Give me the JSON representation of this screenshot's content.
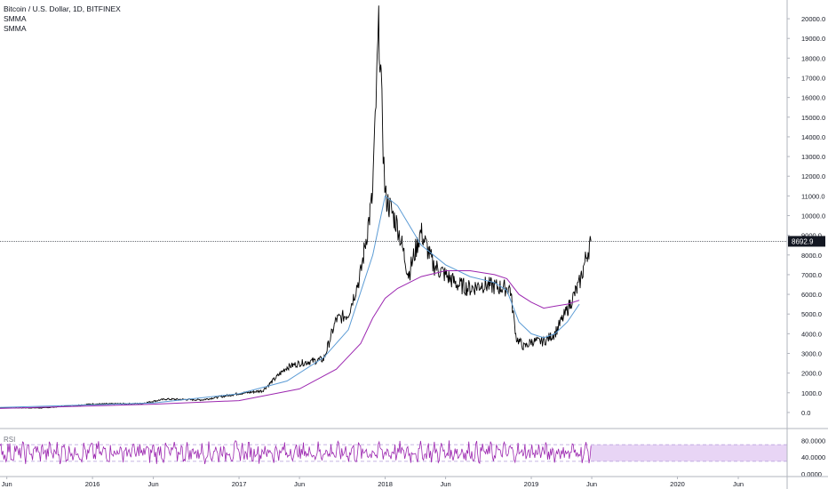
{
  "chart_data": [
    {
      "type": "line",
      "title": "Bitcoin / U.S. Dollar, 1D, BITFINEX",
      "series": [
        {
          "name": "",
          "color": "#000000",
          "x": [
            "2015-05",
            "2015-09",
            "2016-01",
            "2016-05",
            "2016-07",
            "2016-10",
            "2017-01",
            "2017-03",
            "2017-05",
            "2017-06",
            "2017-08",
            "2017-09",
            "2017-10",
            "2017-11",
            "2017-12-01",
            "2017-12-17",
            "2018-01",
            "2018-02",
            "2018-03",
            "2018-04",
            "2018-05",
            "2018-07",
            "2018-08",
            "2018-09",
            "2018-10",
            "2018-11-10",
            "2018-11-25",
            "2018-12-15",
            "2019-01",
            "2019-02",
            "2019-03",
            "2019-04",
            "2019-05",
            "2019-05-20",
            "2019-05-30"
          ],
          "y": [
            240,
            230,
            430,
            450,
            680,
            640,
            960,
            1100,
            2300,
            2500,
            2700,
            4700,
            5000,
            7000,
            11000,
            19800,
            11000,
            9500,
            7000,
            9200,
            7500,
            6500,
            6300,
            6500,
            6400,
            6300,
            3800,
            3300,
            3600,
            3600,
            4000,
            5200,
            6500,
            8000,
            8692.9
          ]
        },
        {
          "name": "SMMA",
          "color": "#5b9bd5",
          "x": [
            "2015-05",
            "2016-06",
            "2017-01",
            "2017-05",
            "2017-08",
            "2017-10",
            "2017-12",
            "2018-01",
            "2018-02",
            "2018-04",
            "2018-06",
            "2018-08",
            "2018-10",
            "2018-11",
            "2018-12",
            "2019-01",
            "2019-02",
            "2019-03",
            "2019-04",
            "2019-05"
          ],
          "y": [
            250,
            480,
            950,
            1600,
            2800,
            4200,
            8000,
            11000,
            10500,
            8500,
            7500,
            6900,
            6600,
            6200,
            4600,
            4000,
            3800,
            4000,
            4600,
            5500
          ]
        },
        {
          "name": "SMMA",
          "color": "#9c27b0",
          "x": [
            "2015-05",
            "2016-06",
            "2017-01",
            "2017-06",
            "2017-09",
            "2017-11",
            "2017-12",
            "2018-01",
            "2018-02",
            "2018-04",
            "2018-06",
            "2018-08",
            "2018-10",
            "2018-11",
            "2018-12",
            "2019-01",
            "2019-02",
            "2019-03",
            "2019-04",
            "2019-05"
          ],
          "y": [
            200,
            420,
            600,
            1200,
            2200,
            3500,
            4800,
            5800,
            6300,
            6900,
            7200,
            7200,
            7000,
            6800,
            6000,
            5600,
            5300,
            5400,
            5500,
            5700
          ]
        }
      ],
      "last_price": "8692.9",
      "y_ticks": [
        "0.0",
        "1000.0",
        "2000.0",
        "3000.0",
        "4000.0",
        "5000.0",
        "6000.0",
        "7000.0",
        "8000.0",
        "9000.0",
        "10000.0",
        "11000.0",
        "12000.0",
        "13000.0",
        "14000.0",
        "15000.0",
        "16000.0",
        "17000.0",
        "18000.0",
        "19000.0",
        "20000.0"
      ],
      "ylim": [
        -500,
        20500
      ],
      "x_ticks": [
        "Jun",
        "2016",
        "Jun",
        "2017",
        "Jun",
        "2018",
        "Jun",
        "2019",
        "Jun",
        "2020",
        "Jun"
      ],
      "grid": false
    },
    {
      "type": "line",
      "title": "RSI",
      "series": [
        {
          "name": "",
          "color": "#9c27b0"
        }
      ],
      "y_ticks": [
        "80.0000",
        "40.0000",
        "0.0000"
      ],
      "bands": [
        30,
        70
      ],
      "ylim": [
        0,
        100
      ]
    }
  ],
  "colors": {
    "candle": "#000000",
    "smma_fast": "#5b9bd5",
    "smma_slow": "#9c27b0",
    "rsi": "#9c27b0",
    "rsi_band": "#e8d5f5",
    "price_tag": "#131722",
    "axis": "#b2b5be"
  },
  "legend": [
    "Bitcoin / U.S. Dollar, 1D, BITFINEX",
    "SMMA",
    "SMMA"
  ]
}
